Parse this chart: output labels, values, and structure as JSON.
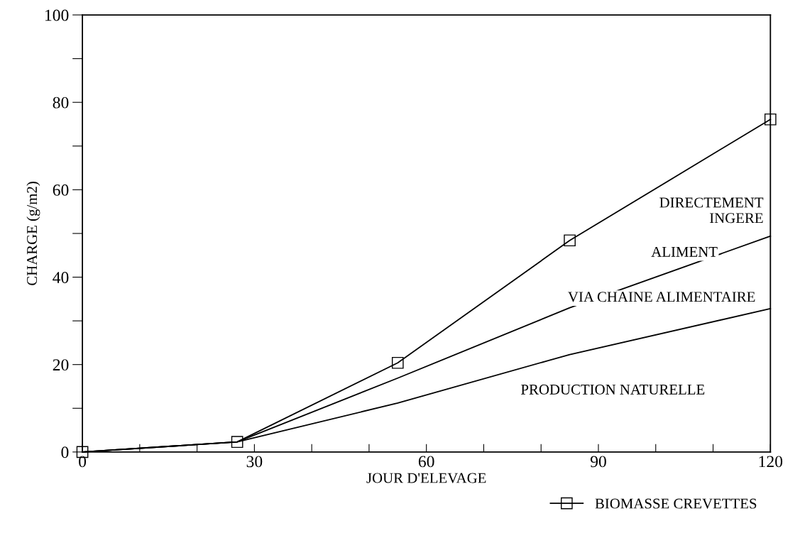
{
  "chart_data": {
    "type": "line",
    "xlabel": "JOUR D'ELEVAGE",
    "ylabel": "CHARGE (g/m2)",
    "x": [
      0,
      27,
      55,
      85,
      120
    ],
    "series": [
      {
        "name": "BIOMASSE CREVETTES",
        "color": "#000000",
        "values": [
          0,
          2.3,
          20.4,
          48.4,
          76.1
        ]
      },
      {
        "color": "#000000",
        "marker": "none",
        "values": [
          0,
          2.3,
          16.9,
          33,
          49.4
        ]
      },
      {
        "color": "#000000",
        "marker": "none",
        "values": [
          0,
          2.3,
          11.2,
          22.3,
          32.8
        ]
      }
    ],
    "xlim": [
      0,
      120
    ],
    "ylim": [
      0,
      100
    ],
    "xticks": [
      0,
      {
        "value": 10,
        "label": null
      },
      {
        "value": 20,
        "label": null
      },
      30,
      {
        "value": 40,
        "label": null
      },
      {
        "value": 50,
        "label": null
      },
      60,
      {
        "value": 70,
        "label": null
      },
      {
        "value": 80,
        "label": null
      },
      90,
      {
        "value": 100,
        "label": null
      },
      {
        "value": 110,
        "label": null
      },
      120
    ],
    "yticks": [
      0,
      {
        "value": 10,
        "label": null
      },
      20,
      {
        "value": 30,
        "label": null
      },
      40,
      {
        "value": 50,
        "label": null
      },
      60,
      {
        "value": 70,
        "label": null
      },
      80,
      {
        "value": 90,
        "label": null
      },
      100
    ],
    "annotations": [
      "DIRECTEMENT\nINGERE",
      "ALIMENT",
      "VIA CHAINE ALIMENTAIRE",
      "PRODUCTION NATURELLE"
    ],
    "marker": "square",
    "line_style": "solid",
    "grid": false,
    "legend": "bottom right"
  }
}
